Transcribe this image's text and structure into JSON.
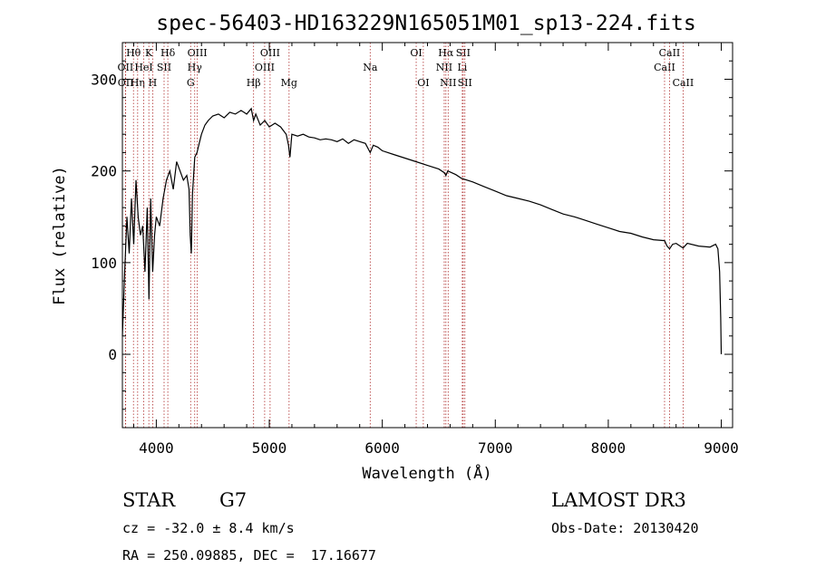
{
  "chart_data": {
    "type": "line",
    "title": "spec-56403-HD163229N165051M01_sp13-224.fits",
    "xlabel": "Wavelength (Å)",
    "ylabel": "Flux (relative)",
    "xlim": [
      3700,
      9100
    ],
    "ylim": [
      -80,
      340
    ],
    "xticks": [
      4000,
      5000,
      6000,
      7000,
      8000,
      9000
    ],
    "yticks": [
      0,
      100,
      200,
      300
    ],
    "series": [
      {
        "name": "spectrum",
        "x": [
          3700,
          3720,
          3740,
          3760,
          3780,
          3800,
          3820,
          3840,
          3860,
          3880,
          3900,
          3920,
          3935,
          3950,
          3968,
          3985,
          4000,
          4030,
          4060,
          4090,
          4120,
          4150,
          4180,
          4210,
          4240,
          4270,
          4290,
          4300,
          4310,
          4320,
          4340,
          4360,
          4380,
          4400,
          4430,
          4460,
          4500,
          4550,
          4600,
          4650,
          4700,
          4750,
          4800,
          4840,
          4861,
          4880,
          4920,
          4960,
          5000,
          5050,
          5100,
          5150,
          5170,
          5183,
          5200,
          5250,
          5300,
          5350,
          5400,
          5450,
          5500,
          5550,
          5600,
          5650,
          5700,
          5750,
          5800,
          5850,
          5893,
          5920,
          5960,
          6000,
          6100,
          6200,
          6300,
          6400,
          6500,
          6550,
          6563,
          6580,
          6650,
          6700,
          6800,
          6900,
          7000,
          7100,
          7200,
          7300,
          7400,
          7500,
          7600,
          7700,
          7800,
          7900,
          8000,
          8100,
          8200,
          8300,
          8400,
          8498,
          8520,
          8542,
          8570,
          8600,
          8662,
          8700,
          8800,
          8900,
          8950,
          8970,
          8985,
          8995,
          9000
        ],
        "y": [
          20,
          90,
          150,
          110,
          170,
          120,
          190,
          150,
          130,
          140,
          90,
          160,
          60,
          170,
          90,
          130,
          150,
          140,
          170,
          190,
          200,
          180,
          210,
          200,
          190,
          195,
          180,
          130,
          110,
          175,
          215,
          220,
          230,
          240,
          250,
          255,
          260,
          262,
          258,
          264,
          262,
          266,
          262,
          268,
          255,
          262,
          250,
          255,
          248,
          252,
          248,
          240,
          228,
          215,
          240,
          238,
          240,
          237,
          236,
          234,
          235,
          234,
          232,
          235,
          230,
          234,
          232,
          230,
          220,
          228,
          226,
          222,
          218,
          214,
          210,
          206,
          202,
          198,
          195,
          200,
          196,
          192,
          188,
          183,
          178,
          173,
          170,
          167,
          163,
          158,
          153,
          150,
          146,
          142,
          138,
          134,
          132,
          128,
          125,
          124,
          118,
          115,
          120,
          121,
          116,
          121,
          118,
          117,
          120,
          115,
          90,
          40,
          0
        ]
      }
    ],
    "line_markers": [
      {
        "label": "OII",
        "wavelength": 3727,
        "row": 2
      },
      {
        "label": "OII",
        "wavelength": 3729,
        "row": 3
      },
      {
        "label": "Hθ",
        "wavelength": 3798,
        "row": 1
      },
      {
        "label": "Hη",
        "wavelength": 3835,
        "row": 3
      },
      {
        "label": "HeI",
        "wavelength": 3889,
        "row": 2
      },
      {
        "label": "K",
        "wavelength": 3934,
        "row": 1
      },
      {
        "label": "H",
        "wavelength": 3968,
        "row": 3
      },
      {
        "label": "SII",
        "wavelength": 4069,
        "row": 2
      },
      {
        "label": "Hδ",
        "wavelength": 4102,
        "row": 1
      },
      {
        "label": "G",
        "wavelength": 4304,
        "row": 3
      },
      {
        "label": "Hγ",
        "wavelength": 4340,
        "row": 2
      },
      {
        "label": "OIII",
        "wavelength": 4363,
        "row": 1
      },
      {
        "label": "Hβ",
        "wavelength": 4861,
        "row": 3
      },
      {
        "label": "OIII",
        "wavelength": 4959,
        "row": 2
      },
      {
        "label": "OIII",
        "wavelength": 5007,
        "row": 1
      },
      {
        "label": "Mg",
        "wavelength": 5175,
        "row": 3
      },
      {
        "label": "Na",
        "wavelength": 5893,
        "row": 2
      },
      {
        "label": "OI",
        "wavelength": 6300,
        "row": 1
      },
      {
        "label": "OI",
        "wavelength": 6363,
        "row": 3
      },
      {
        "label": "NII",
        "wavelength": 6548,
        "row": 2
      },
      {
        "label": "Hα",
        "wavelength": 6563,
        "row": 1
      },
      {
        "label": "NII",
        "wavelength": 6583,
        "row": 3
      },
      {
        "label": "Li",
        "wavelength": 6708,
        "row": 2
      },
      {
        "label": "SII",
        "wavelength": 6716,
        "row": 1
      },
      {
        "label": "SII",
        "wavelength": 6731,
        "row": 3
      },
      {
        "label": "CaII",
        "wavelength": 8498,
        "row": 2
      },
      {
        "label": "CaII",
        "wavelength": 8542,
        "row": 1
      },
      {
        "label": "CaII",
        "wavelength": 8662,
        "row": 3
      }
    ]
  },
  "info": {
    "object_class": "STAR",
    "subclass": "G7",
    "survey": "LAMOST DR3",
    "cz": "cz = -32.0 ± 8.4 km/s",
    "obs_date": "Obs-Date: 20130420",
    "coords": "RA = 250.09885, DEC =  17.16677"
  }
}
